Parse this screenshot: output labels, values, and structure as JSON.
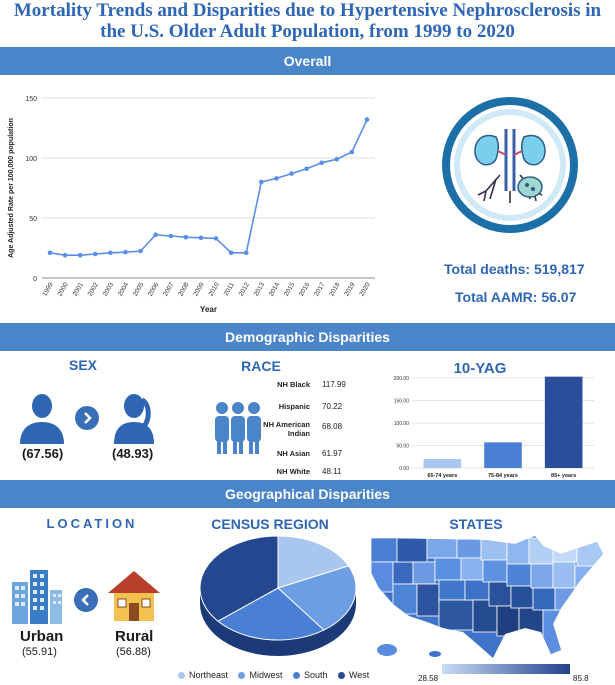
{
  "title": {
    "line1": "Mortality Trends and Disparities due to Hypertensive Nephrosclerosis in",
    "line2": "the U.S. Older Adult Population, from 1999 to 2020"
  },
  "bands": {
    "overall": "Overall",
    "demographic": "Demographic Disparities",
    "geographical": "Geographical Disparities"
  },
  "overall_stats": {
    "total_deaths": "Total deaths: 519,817",
    "total_aamr": "Total AAMR: 56.07"
  },
  "sex": {
    "heading": "SEX",
    "male_value": "(67.56)",
    "female_value": "(48.93)"
  },
  "race": {
    "heading": "RACE",
    "rows": [
      {
        "label": "NH Black",
        "value": "117.99"
      },
      {
        "label": "Hispanic",
        "value": "70.22"
      },
      {
        "label": "NH American Indian",
        "value": "68.08"
      },
      {
        "label": "NH Asian",
        "value": "61.97"
      },
      {
        "label": "NH White",
        "value": "48.11"
      }
    ]
  },
  "location": {
    "heading": "LOCATION",
    "urban_label": "Urban",
    "urban_value": "(55.91)",
    "rural_label": "Rural",
    "rural_value": "(56.88)"
  },
  "census": {
    "heading": "CENSUS REGION",
    "legend": [
      {
        "label": "Northeast",
        "color": "#a9c6ef"
      },
      {
        "label": "Midwest",
        "color": "#6d9de3"
      },
      {
        "label": "South",
        "color": "#4a7fd6"
      },
      {
        "label": "West",
        "color": "#24478f"
      }
    ]
  },
  "states": {
    "heading": "STATES",
    "scale_min": "28.58",
    "scale_max": "85.8",
    "color_low": "#c9dcf6",
    "color_high": "#23418c"
  },
  "icons": [
    "kidney-icon",
    "male-person-icon",
    "female-person-icon",
    "group-people-icon",
    "city-buildings-icon",
    "house-icon",
    "us-map-icon",
    "chevron-right-icon",
    "chevron-left-icon"
  ],
  "chart_data": [
    {
      "type": "line",
      "title": "",
      "xlabel": "Year",
      "ylabel": "Age Adjusted Rate per 100,000 population",
      "x": [
        "1999",
        "2000",
        "2001",
        "2002",
        "2003",
        "2004",
        "2005",
        "2006",
        "2007",
        "2008",
        "2009",
        "2010",
        "2011",
        "2012",
        "2013",
        "2014",
        "2015",
        "2016",
        "2017",
        "2018",
        "2019",
        "2020"
      ],
      "values": [
        21,
        19,
        19,
        20,
        21,
        21.5,
        22.5,
        36,
        35,
        34,
        33.5,
        33,
        21,
        21,
        80,
        83,
        87,
        91,
        96,
        99,
        105,
        132
      ],
      "ylim": [
        0,
        150
      ],
      "yticks": [
        0,
        50,
        100,
        150
      ],
      "grid": true,
      "color": "#5b8ee6"
    },
    {
      "type": "bar",
      "title": "10-YAG",
      "categories": [
        "65-74 years",
        "75-84 years",
        "85+ years"
      ],
      "values": [
        20,
        57,
        203
      ],
      "ylim": [
        0,
        200
      ],
      "yticks": [
        "0.00",
        "50.00",
        "100.00",
        "150.00",
        "200.00"
      ],
      "colors": [
        "#a9c6ef",
        "#4a7fd6",
        "#2a4e9a"
      ],
      "grid": true
    },
    {
      "type": "pie",
      "title": "CENSUS REGION",
      "categories": [
        "Northeast",
        "Midwest",
        "South",
        "West"
      ],
      "values": [
        18,
        22,
        24,
        36
      ],
      "colors": [
        "#a9c6ef",
        "#6d9de3",
        "#4a7fd6",
        "#24478f"
      ]
    }
  ]
}
